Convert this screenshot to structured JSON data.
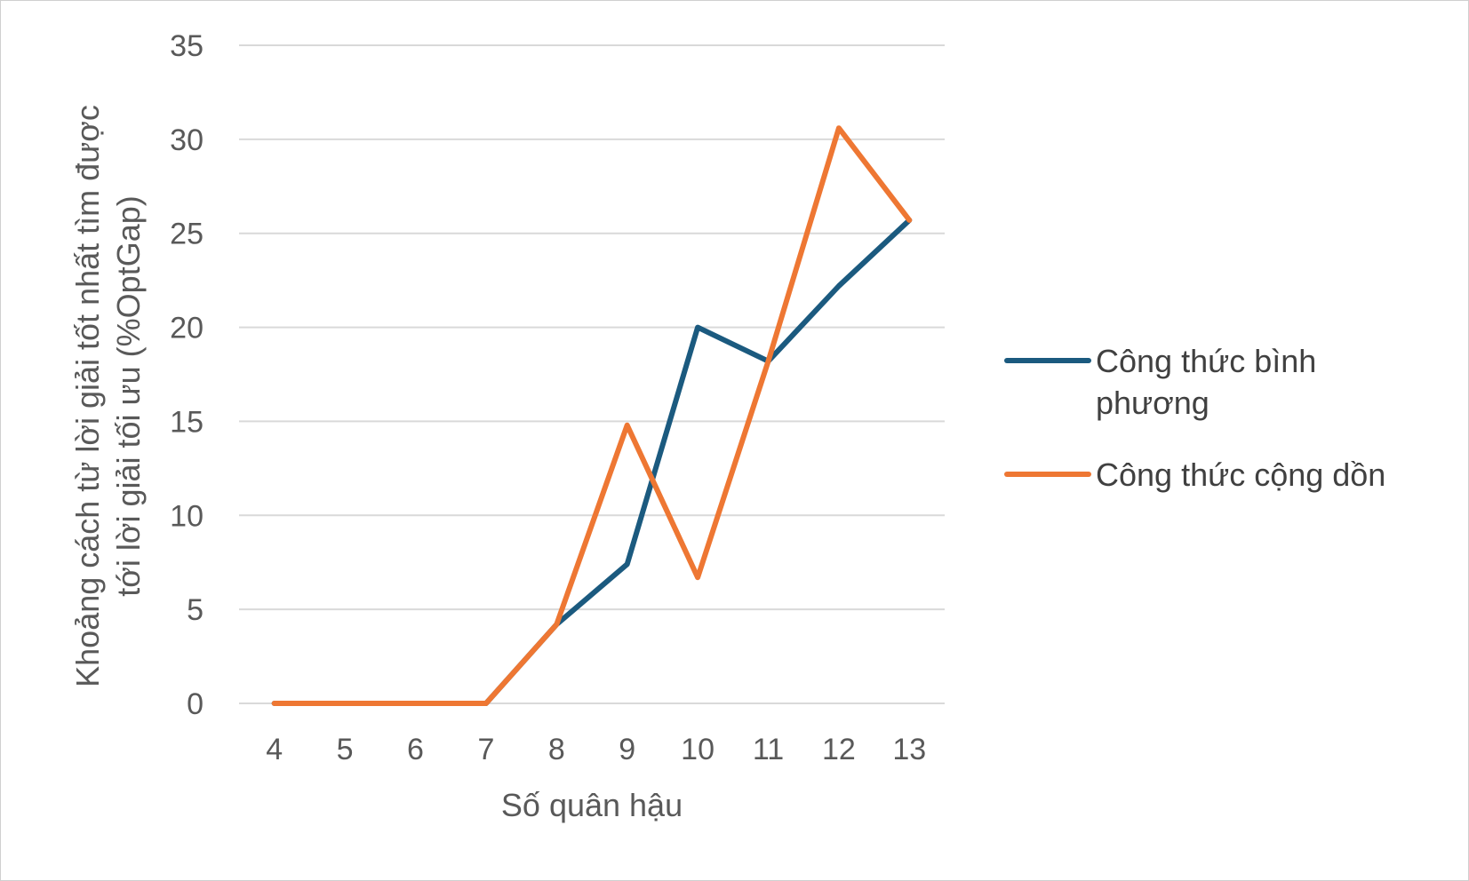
{
  "chart_data": {
    "type": "line",
    "categories": [
      "4",
      "5",
      "6",
      "7",
      "8",
      "9",
      "10",
      "11",
      "12",
      "13"
    ],
    "series": [
      {
        "name": "Công thức bình phương",
        "color": "#1b5a7f",
        "values": [
          0,
          0,
          0,
          0,
          4.2,
          7.4,
          20.0,
          18.2,
          22.2,
          25.7
        ]
      },
      {
        "name": "Công thức cộng dồn",
        "color": "#ee7733",
        "values": [
          0,
          0,
          0,
          0,
          4.2,
          14.8,
          6.7,
          18.2,
          30.6,
          25.7
        ]
      }
    ],
    "xlabel": "Số quân hậu",
    "ylabel_lines": [
      "Khoảng cách từ lời giải tốt nhất tìm được",
      "tới lời giải tối ưu (%OptGap)"
    ],
    "ylim": [
      0,
      35
    ],
    "yticks": [
      "0",
      "5",
      "10",
      "15",
      "20",
      "25",
      "30",
      "35"
    ],
    "grid": true,
    "grid_color": "#d9d9d9",
    "legend_position": "right",
    "legend_lines": [
      [
        "Công thức bình",
        "phương"
      ],
      [
        "Công thức cộng dồn"
      ]
    ]
  }
}
